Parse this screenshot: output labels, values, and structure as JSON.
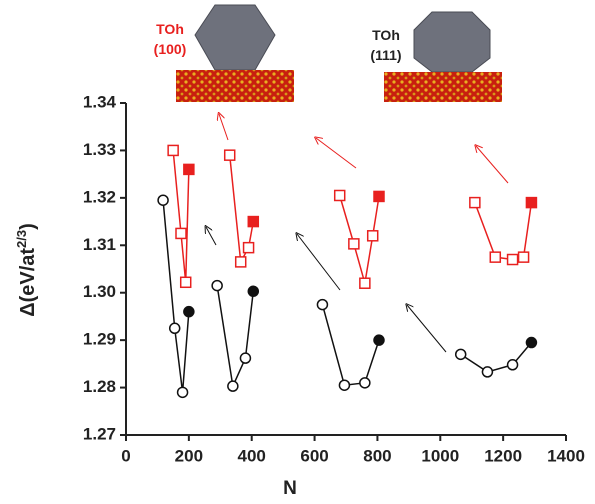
{
  "chart_data": {
    "type": "line",
    "x_label": "N",
    "y_label": {
      "text": "Δ(eV/at",
      "superscript": "2/3",
      "suffix": ")"
    },
    "annotations": [
      {
        "text": [
          "TOh",
          "(100)"
        ],
        "color": "#e8201f"
      },
      {
        "text": [
          "TOh",
          "(111)"
        ],
        "color": "#222222"
      }
    ],
    "xlim": [
      0,
      1400
    ],
    "xticks": [
      0,
      200,
      400,
      600,
      800,
      1000,
      1200,
      1400
    ],
    "ylim": [
      1.27,
      1.34
    ],
    "yticks": [
      1.27,
      1.28,
      1.29,
      {
        "value": 1.3,
        "label": "1.30"
      },
      1.31,
      1.32,
      1.33,
      1.34
    ],
    "series": [
      {
        "color": "#111111",
        "marker": "circle",
        "x": [
          118,
          155,
          180,
          200
        ],
        "values": [
          1.3195,
          1.2925,
          1.279,
          1.296
        ],
        "filled": [
          false,
          false,
          false,
          true
        ]
      },
      {
        "color": "#111111",
        "marker": "circle",
        "x": [
          290,
          340,
          380,
          405
        ],
        "values": [
          1.3015,
          1.2803,
          1.2862,
          1.3003
        ],
        "filled": [
          false,
          false,
          false,
          true
        ]
      },
      {
        "color": "#111111",
        "marker": "circle",
        "x": [
          625,
          695,
          760,
          805
        ],
        "values": [
          1.2975,
          1.2805,
          1.281,
          1.29
        ],
        "filled": [
          false,
          false,
          false,
          true
        ]
      },
      {
        "color": "#111111",
        "marker": "circle",
        "x": [
          1065,
          1150,
          1230,
          1290
        ],
        "values": [
          1.287,
          1.2833,
          1.2848,
          1.2895
        ],
        "filled": [
          false,
          false,
          false,
          true
        ]
      },
      {
        "color": "#e8201f",
        "marker": "square",
        "x": [
          150,
          175,
          190,
          200
        ],
        "values": [
          1.33,
          1.3125,
          1.3022,
          1.326
        ],
        "filled": [
          false,
          false,
          false,
          true
        ]
      },
      {
        "color": "#e8201f",
        "marker": "square",
        "x": [
          330,
          365,
          390,
          405
        ],
        "values": [
          1.329,
          1.3065,
          1.3095,
          1.315
        ],
        "filled": [
          false,
          false,
          false,
          true
        ]
      },
      {
        "color": "#e8201f",
        "marker": "square",
        "x": [
          680,
          725,
          760,
          785,
          805
        ],
        "values": [
          1.3205,
          1.3103,
          1.302,
          1.312,
          1.3203
        ],
        "filled": [
          false,
          false,
          false,
          false,
          true
        ]
      },
      {
        "color": "#e8201f",
        "marker": "square",
        "x": [
          1110,
          1175,
          1230,
          1265,
          1290
        ],
        "values": [
          1.319,
          1.3075,
          1.307,
          1.3075,
          1.319
        ],
        "filled": [
          false,
          false,
          false,
          false,
          true
        ]
      }
    ]
  }
}
